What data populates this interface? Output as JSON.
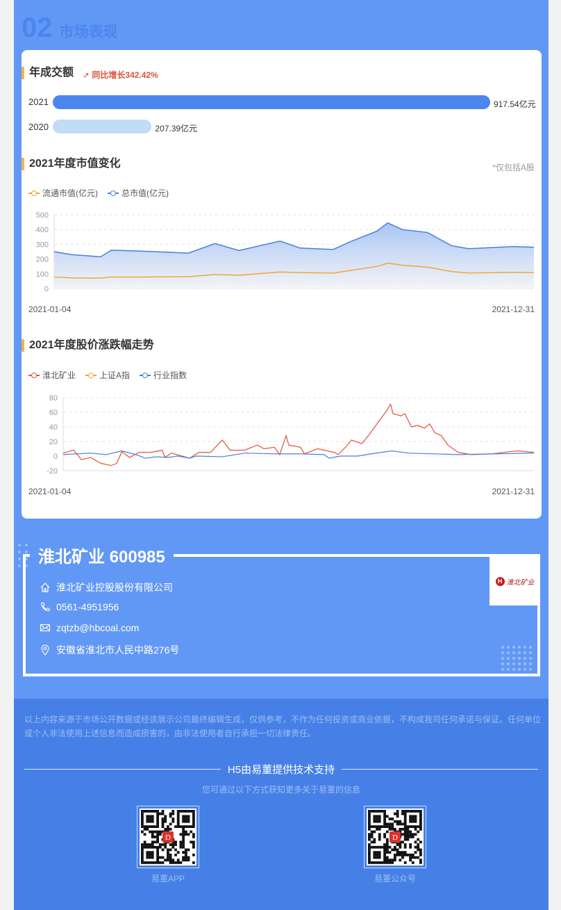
{
  "section": {
    "number": "02",
    "title": "市场表现"
  },
  "turnover": {
    "title": "年成交额",
    "growth": "同比增长342.42%",
    "bars": [
      {
        "year": "2021",
        "value": 917.54,
        "label": "917.54亿元",
        "color": "#4a86ee"
      },
      {
        "year": "2020",
        "value": 207.39,
        "label": "207.39亿元",
        "color": "#c2dbf7"
      }
    ]
  },
  "market_cap": {
    "title": "2021年度市值变化",
    "note": "*仅包括A股",
    "start_label": "2021-01-04",
    "end_label": "2021-12-31"
  },
  "price_trend": {
    "title": "2021年度股价涨跌幅走势",
    "start_label": "2021-01-04",
    "end_label": "2021-12-31"
  },
  "chart_data": [
    {
      "type": "area",
      "ylim": [
        0,
        500
      ],
      "yticks": [
        0,
        100,
        200,
        300,
        400,
        500
      ],
      "grid": true,
      "legend": "top-left",
      "x": [
        "2021-01-04",
        "2021-01-17",
        "2021-02-08",
        "2021-02-16",
        "2021-03-08",
        "2021-04-15",
        "2021-05-05",
        "2021-05-23",
        "2021-06-23",
        "2021-07-08",
        "2021-08-02",
        "2021-08-15",
        "2021-09-04",
        "2021-09-12",
        "2021-09-23",
        "2021-10-12",
        "2021-10-30",
        "2021-11-12",
        "2021-12-15",
        "2021-12-31"
      ],
      "series": [
        {
          "name": "流通市值(亿元)",
          "color": "#f0a732",
          "values": [
            78,
            72,
            70,
            78,
            78,
            80,
            95,
            90,
            112,
            108,
            105,
            122,
            150,
            172,
            158,
            145,
            115,
            105,
            110,
            108
          ]
        },
        {
          "name": "总市值(亿元)",
          "color": "#4a7fd9",
          "values": [
            250,
            230,
            215,
            260,
            255,
            240,
            305,
            258,
            322,
            275,
            265,
            318,
            390,
            445,
            400,
            380,
            290,
            270,
            285,
            280
          ]
        }
      ]
    },
    {
      "type": "line",
      "ylim": [
        -20,
        80
      ],
      "yticks": [
        -20,
        0,
        20,
        40,
        60,
        80
      ],
      "grid": true,
      "legend": "top-left",
      "series": [
        {
          "name": "淮北矿业",
          "color": "#e0533a",
          "points": [
            [
              "2021-01-04",
              4
            ],
            [
              "2021-01-12",
              8
            ],
            [
              "2021-01-18",
              -5
            ],
            [
              "2021-01-25",
              -2
            ],
            [
              "2021-02-02",
              -10
            ],
            [
              "2021-02-10",
              -13
            ],
            [
              "2021-02-14",
              -10
            ],
            [
              "2021-02-18",
              6
            ],
            [
              "2021-02-24",
              -2
            ],
            [
              "2021-03-03",
              5
            ],
            [
              "2021-03-12",
              5
            ],
            [
              "2021-03-21",
              8
            ],
            [
              "2021-03-23",
              -2
            ],
            [
              "2021-03-28",
              4
            ],
            [
              "2021-04-11",
              -3
            ],
            [
              "2021-04-18",
              5
            ],
            [
              "2021-04-27",
              5
            ],
            [
              "2021-05-06",
              22
            ],
            [
              "2021-05-12",
              8
            ],
            [
              "2021-05-23",
              8
            ],
            [
              "2021-06-02",
              15
            ],
            [
              "2021-06-07",
              10
            ],
            [
              "2021-06-15",
              12
            ],
            [
              "2021-06-19",
              2
            ],
            [
              "2021-06-24",
              28
            ],
            [
              "2021-06-26",
              15
            ],
            [
              "2021-07-05",
              12
            ],
            [
              "2021-07-08",
              3
            ],
            [
              "2021-07-18",
              10
            ],
            [
              "2021-07-31",
              5
            ],
            [
              "2021-08-03",
              2
            ],
            [
              "2021-08-10",
              15
            ],
            [
              "2021-08-13",
              22
            ],
            [
              "2021-08-21",
              17
            ],
            [
              "2021-08-27",
              30
            ],
            [
              "2021-09-02",
              45
            ],
            [
              "2021-09-09",
              62
            ],
            [
              "2021-09-12",
              71
            ],
            [
              "2021-09-14",
              58
            ],
            [
              "2021-09-20",
              55
            ],
            [
              "2021-09-23",
              58
            ],
            [
              "2021-09-28",
              40
            ],
            [
              "2021-10-03",
              42
            ],
            [
              "2021-10-08",
              38
            ],
            [
              "2021-10-12",
              44
            ],
            [
              "2021-10-16",
              32
            ],
            [
              "2021-10-21",
              28
            ],
            [
              "2021-10-26",
              15
            ],
            [
              "2021-11-03",
              5
            ],
            [
              "2021-11-13",
              2
            ],
            [
              "2021-11-29",
              3
            ],
            [
              "2021-12-12",
              6
            ],
            [
              "2021-12-19",
              7
            ],
            [
              "2021-12-31",
              5
            ]
          ]
        },
        {
          "name": "上证A指",
          "color": "#f0a732",
          "points": []
        },
        {
          "name": "行业指数",
          "color": "#4a7fd9",
          "points": [
            [
              "2021-01-04",
              2
            ],
            [
              "2021-01-14",
              3
            ],
            [
              "2021-01-25",
              4
            ],
            [
              "2021-02-06",
              2
            ],
            [
              "2021-02-18",
              7
            ],
            [
              "2021-03-01",
              2
            ],
            [
              "2021-03-08",
              -3
            ],
            [
              "2021-03-17",
              -1
            ],
            [
              "2021-03-25",
              -2
            ],
            [
              "2021-04-02",
              0
            ],
            [
              "2021-04-11",
              -3
            ],
            [
              "2021-04-16",
              0
            ],
            [
              "2021-05-06",
              -1
            ],
            [
              "2021-05-23",
              4
            ],
            [
              "2021-06-18",
              3
            ],
            [
              "2021-07-05",
              3
            ],
            [
              "2021-07-23",
              2
            ],
            [
              "2021-07-27",
              -3
            ],
            [
              "2021-08-05",
              0
            ],
            [
              "2021-08-18",
              0
            ],
            [
              "2021-08-28",
              3
            ],
            [
              "2021-09-13",
              7
            ],
            [
              "2021-09-26",
              4
            ],
            [
              "2021-11-03",
              2
            ],
            [
              "2021-11-29",
              3
            ],
            [
              "2021-12-31",
              4
            ]
          ]
        }
      ]
    }
  ],
  "company": {
    "name": "淮北矿业 600985",
    "logo_text": "淮北矿业",
    "full_name": "淮北矿业控股股份有限公司",
    "phone": "0561-4951956",
    "email": "zqtzb@hbcoal.com",
    "address": "安徽省淮北市人民中路276号"
  },
  "footer": {
    "disclaimer": "以上内容来源于市场公开数据或经该展示公司最终编辑生成，仅供参考，不作为任何投资或商业依据，不构成我司任何承诺与保证。任何单位或个人非法使用上述信息而造成损害的，由非法使用者自行承担一切法律责任。",
    "support": "H5由易董提供技术支持",
    "more": "您可通过以下方式获知更多关于易董的信息",
    "qr": [
      {
        "label": "易董APP"
      },
      {
        "label": "易董公众号"
      }
    ]
  }
}
